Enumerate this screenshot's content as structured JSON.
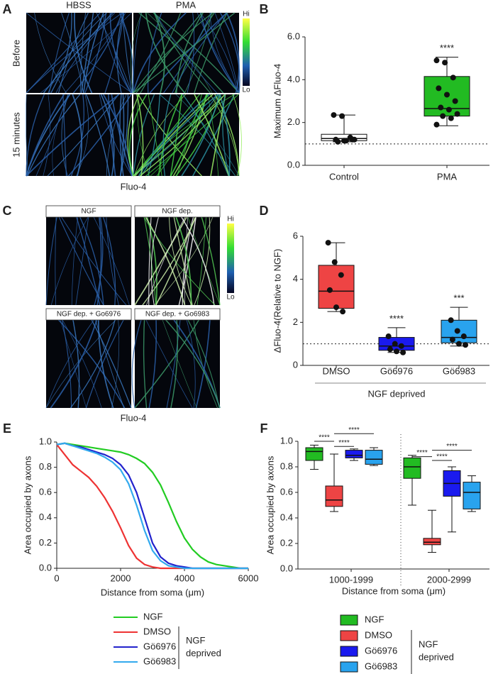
{
  "panel_labels": [
    "A",
    "B",
    "C",
    "D",
    "E",
    "F"
  ],
  "panel_a": {
    "columns": [
      "HBSS",
      "PMA"
    ],
    "rows": [
      "Before",
      "15 minutes"
    ],
    "colorbar": [
      "Hi",
      "Lo"
    ],
    "caption": "Fluo-4"
  },
  "panel_c": {
    "labels": [
      "NGF",
      "NGF dep.",
      "NGF dep. + Go6976",
      "NGF dep. + Go6983"
    ],
    "colorbar": [
      "Hi",
      "Lo"
    ],
    "caption": "Fluo-4"
  },
  "chart_data": [
    {
      "type": "box",
      "ylabel": "Maximum ΔFluo-4",
      "categories": [
        "Control",
        "PMA"
      ],
      "ylim": [
        0,
        6
      ],
      "yticks": [
        {
          "value": 0,
          "label": "0.0"
        },
        {
          "value": 2,
          "label": "2.0"
        },
        {
          "value": 4,
          "label": "4.0"
        },
        {
          "value": 6,
          "label": "6.0"
        }
      ],
      "reference_line": 1,
      "annotations": [
        null,
        "****"
      ],
      "boxes": [
        {
          "color": "#ffffff",
          "min": 1.1,
          "q1": 1.15,
          "median": 1.25,
          "q3": 1.45,
          "max": 2.35,
          "points": [
            2.35,
            2.3,
            1.3,
            1.2,
            1.15,
            1.2,
            1.1,
            1.15,
            1.2
          ]
        },
        {
          "color": "#22bb22",
          "min": 1.85,
          "q1": 2.3,
          "median": 2.65,
          "q3": 4.15,
          "max": 5.05,
          "points": [
            4.9,
            4.8,
            4.1,
            3.6,
            3.3,
            3.0,
            2.7,
            2.6,
            2.4,
            2.3,
            2.2,
            1.9
          ]
        }
      ]
    },
    {
      "type": "box",
      "ylabel": "ΔFluo-4(Relative to NGF)",
      "categories": [
        "DMSO",
        "Gö6976",
        "Gö6983"
      ],
      "ylim": [
        0,
        6
      ],
      "yticks": [
        0,
        2,
        4,
        6
      ],
      "reference_line": 1,
      "annotations": [
        null,
        "****",
        "***"
      ],
      "group_label": "NGF deprived",
      "boxes": [
        {
          "color": "#ee4444",
          "min": 2.5,
          "q1": 2.65,
          "median": 3.45,
          "q3": 4.65,
          "max": 5.7,
          "points": [
            5.7,
            4.8,
            4.2,
            3.5,
            2.7,
            2.5
          ]
        },
        {
          "color": "#1a1aee",
          "min": 0.6,
          "q1": 0.7,
          "median": 0.9,
          "q3": 1.3,
          "max": 1.75,
          "points": [
            1.35,
            1.0,
            0.9,
            0.75,
            0.65,
            0.6
          ]
        },
        {
          "color": "#29a3ee",
          "min": 0.9,
          "q1": 1.05,
          "median": 1.3,
          "q3": 2.1,
          "max": 2.7,
          "points": [
            2.1,
            1.6,
            1.35,
            1.2,
            1.0,
            0.95
          ]
        }
      ]
    },
    {
      "type": "line",
      "xlabel": "Distance from soma (μm)",
      "ylabel": "Area occupied by axons",
      "xlim": [
        0,
        6000
      ],
      "xticks": [
        0,
        2000,
        4000,
        6000
      ],
      "ylim": [
        0,
        1
      ],
      "yticks": [
        {
          "value": 0,
          "label": "0.0"
        },
        0.2,
        0.4,
        0.6,
        0.8,
        {
          "value": 1,
          "label": "1.0"
        }
      ],
      "group_label": [
        "NGF",
        "deprived"
      ],
      "x": [
        0,
        250,
        500,
        750,
        1000,
        1250,
        1500,
        1750,
        2000,
        2250,
        2500,
        2750,
        3000,
        3250,
        3500,
        3750,
        4000,
        4250,
        4500,
        4750,
        5000,
        5250,
        5500,
        5750,
        6000
      ],
      "series": [
        {
          "name": "NGF",
          "color": "#22cc22",
          "values": [
            0.98,
            0.99,
            0.98,
            0.97,
            0.96,
            0.95,
            0.94,
            0.93,
            0.92,
            0.9,
            0.87,
            0.83,
            0.76,
            0.66,
            0.52,
            0.37,
            0.24,
            0.15,
            0.09,
            0.05,
            0.03,
            0.02,
            0.01,
            0,
            0
          ]
        },
        {
          "name": "DMSO",
          "color": "#ee3333",
          "values": [
            0.98,
            0.9,
            0.82,
            0.77,
            0.72,
            0.65,
            0.56,
            0.45,
            0.32,
            0.18,
            0.08,
            0.03,
            0.01,
            0,
            0,
            0,
            0,
            0,
            0,
            0,
            0,
            0,
            0,
            0,
            0
          ]
        },
        {
          "name": "Gö6976",
          "color": "#2222cc",
          "values": [
            0.98,
            0.99,
            0.97,
            0.96,
            0.94,
            0.92,
            0.9,
            0.87,
            0.82,
            0.74,
            0.6,
            0.4,
            0.2,
            0.09,
            0.04,
            0.02,
            0.01,
            0,
            0,
            0,
            0,
            0,
            0,
            0,
            0
          ]
        },
        {
          "name": "Gö6983",
          "color": "#33aaee",
          "values": [
            0.98,
            0.99,
            0.97,
            0.95,
            0.93,
            0.91,
            0.88,
            0.84,
            0.78,
            0.67,
            0.5,
            0.3,
            0.14,
            0.06,
            0.02,
            0.01,
            0,
            0,
            0,
            0,
            0,
            0,
            0,
            0,
            0
          ]
        }
      ]
    },
    {
      "type": "box",
      "xlabel": "Distance from soma (μm)",
      "ylabel": "Area occupied by axons",
      "categories": [
        "1000-1999",
        "2000-2999"
      ],
      "ylim": [
        0,
        1
      ],
      "yticks": [
        {
          "value": 0,
          "label": "0.0"
        },
        0.2,
        0.4,
        0.6,
        0.8,
        {
          "value": 1,
          "label": "1.0"
        }
      ],
      "annotations": [
        "****",
        "****",
        "****",
        "****",
        "****",
        "****"
      ],
      "group_label": [
        "NGF",
        "deprived"
      ],
      "series": [
        {
          "name": "NGF",
          "color": "#22bb22",
          "values": [
            {
              "min": 0.78,
              "q1": 0.85,
              "median": 0.92,
              "q3": 0.95,
              "max": 0.97
            },
            {
              "min": 0.5,
              "q1": 0.71,
              "median": 0.8,
              "q3": 0.87,
              "max": 0.89
            }
          ]
        },
        {
          "name": "DMSO",
          "color": "#ee4444",
          "values": [
            {
              "min": 0.45,
              "q1": 0.49,
              "median": 0.54,
              "q3": 0.65,
              "max": 0.9
            },
            {
              "min": 0.13,
              "q1": 0.19,
              "median": 0.21,
              "q3": 0.24,
              "max": 0.46
            }
          ]
        },
        {
          "name": "Gö6976",
          "color": "#1a1aee",
          "values": [
            {
              "min": 0.85,
              "q1": 0.87,
              "median": 0.89,
              "q3": 0.93,
              "max": 0.94
            },
            {
              "min": 0.29,
              "q1": 0.57,
              "median": 0.67,
              "q3": 0.77,
              "max": 0.8
            }
          ]
        },
        {
          "name": "Gö6983",
          "color": "#29a3ee",
          "values": [
            {
              "min": 0.81,
              "q1": 0.82,
              "median": 0.86,
              "q3": 0.93,
              "max": 0.95
            },
            {
              "min": 0.45,
              "q1": 0.47,
              "median": 0.6,
              "q3": 0.68,
              "max": 0.73
            }
          ]
        }
      ]
    }
  ]
}
